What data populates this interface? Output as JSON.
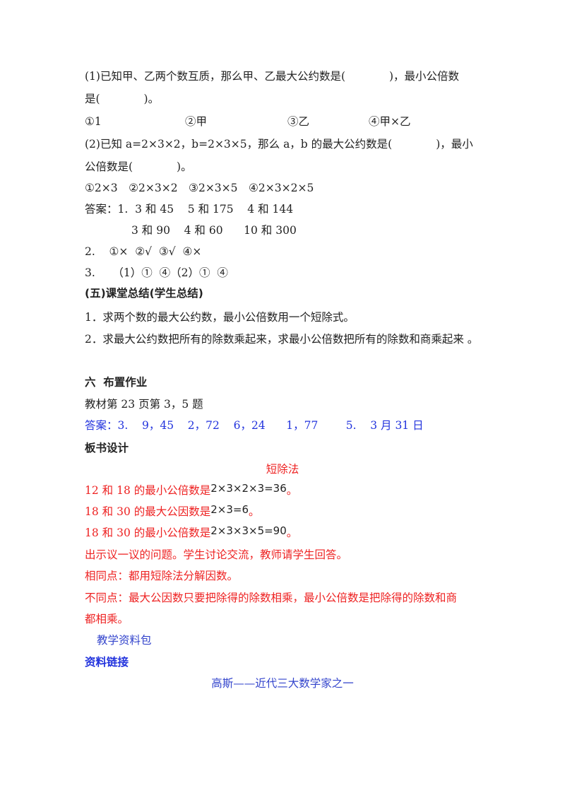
{
  "exercise": {
    "q1_line1": "(1)已知甲、乙两个数互质，那么甲、乙最大公约数是(　　　　)，最小公倍数",
    "q1_line2": "是(　　　　)。",
    "q1_options": [
      "①1",
      "②甲",
      "③乙",
      "④甲×乙"
    ],
    "q2_line1": "(2)已知 a=2×3×2，b=2×3×5，那么 a，b 的最大公约数是(　　　　)，最小",
    "q2_line2": "公倍数是(　　　　)。",
    "q2_options": "①2×3　②2×3×2　③2×3×5　④2×3×2×5"
  },
  "answers": {
    "line1": "答案：1.  3 和 45    5 和 175    4 和 144",
    "line2": "3 和 90    4 和 60      10 和 300",
    "line3": "2.    ①×  ②√  ③√  ④×",
    "line4": "3.     （1）①  ④（2）①  ④"
  },
  "summary": {
    "heading": "(五)课堂总结(学生总结)",
    "items": [
      "1．求两个数的最大公约数，最小公倍数用一个短除式。",
      "2．求最大公约数把所有的除数乘起来，求最小公倍数把所有的除数和商乘起来 。"
    ]
  },
  "homework": {
    "heading": "六  布置作业",
    "task": "教材第 23 页第 3，5 题",
    "answer": "答案：3.    9，45    2，72    6，24      1，77        5.    3 月 31 日"
  },
  "board": {
    "heading": "板书设计",
    "title": "短除法",
    "formulas": [
      {
        "text": "12 和 18 的最小公倍数是",
        "formula": "2×3×2×3=36",
        "tail": "。"
      },
      {
        "text": "18 和 30 的最大公因数是",
        "formula": "2×3=6",
        "tail": "。"
      },
      {
        "text": "18 和 30 的最小公倍数是",
        "formula": "2×3×3×5=90",
        "tail": "。"
      }
    ],
    "discussion": "出示议一议的问题。学生讨论交流，教师请学生回答。",
    "same": "相同点：都用短除法分解因数。",
    "diff_line1": "不同点：最大公因数只要把除得的除数相乘，最小公倍数是把除得的除数和商",
    "diff_line2": "都相乘。"
  },
  "resources": {
    "pack": "教学资料包",
    "link_heading": "资料链接",
    "article_title": "高斯——近代三大数学家之一"
  },
  "colors": {
    "red": "#ee2222",
    "blue": "#2233dd"
  }
}
